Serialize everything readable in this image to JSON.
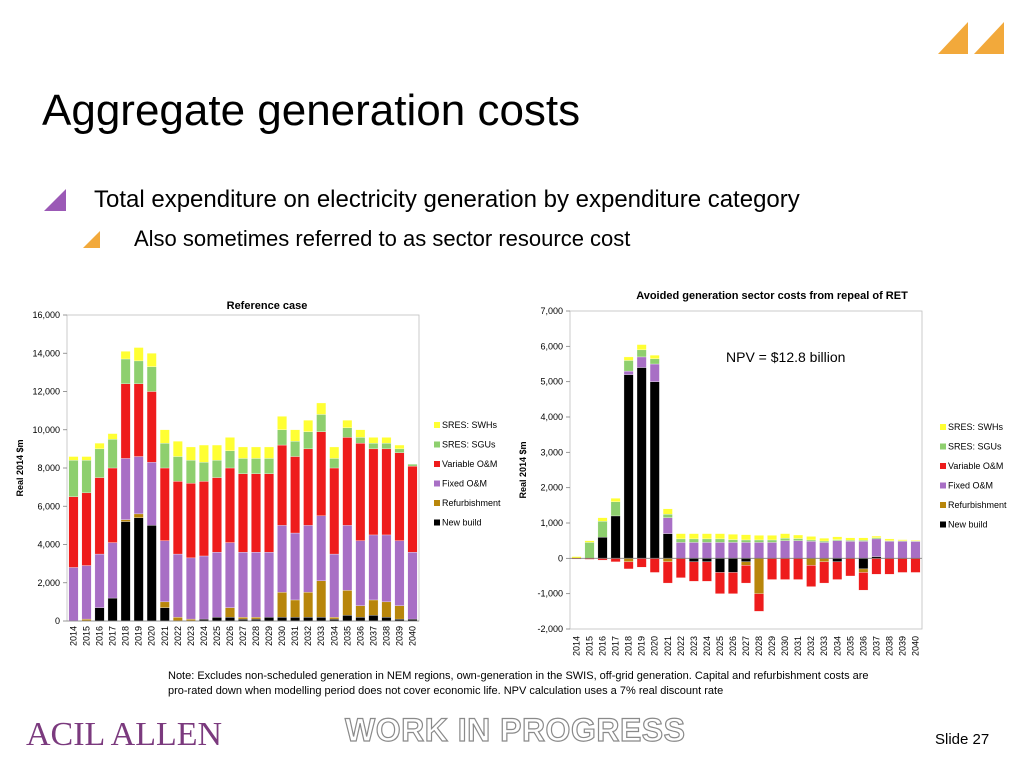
{
  "slide": {
    "title": "Aggregate generation costs",
    "bullet1": "Total expenditure on electricity generation by expenditure category",
    "bullet2": "Also sometimes referred to as sector resource cost",
    "note": "Note: Excludes non-scheduled generation in NEM regions, own-generation in the SWIS, off-grid generation. Capital and refurbishment costs are pro-rated down when modelling period does not cover economic life. NPV calculation uses a 7% real discount rate",
    "logo_text": "ACIL ALLEN",
    "watermark": "WORK IN PROGRESS",
    "slide_number": "Slide 27",
    "colors": {
      "purple": "#9b59b6",
      "orange": "#f2a93b",
      "logo": "#7b3a7e"
    }
  },
  "chart_data": [
    {
      "type": "bar",
      "stacked": true,
      "title": "Reference case",
      "ylabel": "Real 2014 $m",
      "ylim": [
        0,
        16000
      ],
      "yticks": [
        0,
        2000,
        4000,
        6000,
        8000,
        10000,
        12000,
        14000,
        16000
      ],
      "ytick_labels": [
        "0",
        "2,000",
        "4,000",
        "6,000",
        "8,000",
        "10,000",
        "12,000",
        "14,000",
        "16,000"
      ],
      "grid": false,
      "legend_position": "right",
      "categories": [
        "2014",
        "2015",
        "2016",
        "2017",
        "2018",
        "2019",
        "2020",
        "2021",
        "2022",
        "2023",
        "2024",
        "2025",
        "2026",
        "2027",
        "2028",
        "2029",
        "2030",
        "2031",
        "2032",
        "2033",
        "2034",
        "2035",
        "2036",
        "2037",
        "2038",
        "2039",
        "2040"
      ],
      "series": [
        {
          "name": "New build",
          "color": "#000000",
          "values": [
            0,
            0,
            700,
            1200,
            5200,
            5400,
            5000,
            700,
            0,
            0,
            100,
            200,
            200,
            100,
            100,
            200,
            200,
            200,
            200,
            200,
            100,
            300,
            200,
            300,
            200,
            100,
            100
          ]
        },
        {
          "name": "Refurbishment",
          "color": "#b8860b",
          "values": [
            0,
            100,
            0,
            0,
            100,
            200,
            0,
            300,
            200,
            100,
            0,
            0,
            500,
            100,
            100,
            0,
            1300,
            900,
            1300,
            1900,
            100,
            1300,
            600,
            800,
            800,
            700,
            0
          ]
        },
        {
          "name": "Fixed O&M",
          "color": "#a86fc5",
          "values": [
            2800,
            2800,
            2800,
            2900,
            3200,
            3000,
            3300,
            3200,
            3300,
            3200,
            3300,
            3400,
            3400,
            3400,
            3400,
            3400,
            3500,
            3500,
            3500,
            3400,
            3300,
            3400,
            3400,
            3400,
            3500,
            3400,
            3500
          ]
        },
        {
          "name": "Variable O&M",
          "color": "#ee1c1c",
          "values": [
            3700,
            3800,
            4000,
            3900,
            3900,
            3800,
            3700,
            3800,
            3800,
            3900,
            3900,
            3900,
            3900,
            4100,
            4100,
            4100,
            4200,
            4000,
            4000,
            4400,
            4500,
            4600,
            5100,
            4500,
            4500,
            4600,
            4500
          ]
        },
        {
          "name": "SRES: SGUs",
          "color": "#8ecf6e",
          "values": [
            1900,
            1700,
            1500,
            1500,
            1300,
            1200,
            1300,
            1300,
            1300,
            1200,
            1000,
            900,
            900,
            800,
            800,
            800,
            800,
            800,
            900,
            900,
            500,
            500,
            300,
            300,
            300,
            200,
            100
          ]
        },
        {
          "name": "SRES: SWHs",
          "color": "#ffff33",
          "values": [
            200,
            200,
            300,
            300,
            400,
            700,
            700,
            700,
            800,
            700,
            900,
            800,
            700,
            600,
            600,
            600,
            700,
            600,
            600,
            600,
            600,
            400,
            400,
            300,
            300,
            200,
            0
          ]
        }
      ]
    },
    {
      "type": "bar",
      "stacked": true,
      "title": "Avoided generation sector costs from repeal of RET",
      "ylabel": "Real 2014 $m",
      "ylim": [
        -2000,
        7000
      ],
      "yticks": [
        -2000,
        -1000,
        0,
        1000,
        2000,
        3000,
        4000,
        5000,
        6000,
        7000
      ],
      "ytick_labels": [
        "-2,000",
        "-1,000",
        "0",
        "1,000",
        "2,000",
        "3,000",
        "4,000",
        "5,000",
        "6,000",
        "7,000"
      ],
      "grid": false,
      "legend_position": "right",
      "annotation": "NPV = $12.8 billion",
      "categories": [
        "2014",
        "2015",
        "2016",
        "2017",
        "2018",
        "2019",
        "2020",
        "2021",
        "2022",
        "2023",
        "2024",
        "2025",
        "2026",
        "2027",
        "2028",
        "2029",
        "2030",
        "2031",
        "2032",
        "2033",
        "2034",
        "2035",
        "2036",
        "2037",
        "2038",
        "2039",
        "2040"
      ],
      "series": [
        {
          "name": "New build",
          "color": "#000000",
          "values": [
            0,
            0,
            600,
            1200,
            5200,
            5400,
            5000,
            700,
            0,
            -100,
            -100,
            -400,
            -400,
            -100,
            0,
            0,
            0,
            0,
            0,
            0,
            -100,
            0,
            -300,
            50,
            0,
            0,
            0
          ]
        },
        {
          "name": "Refurbishment",
          "color": "#b8860b",
          "values": [
            0,
            0,
            0,
            0,
            -100,
            0,
            0,
            -100,
            0,
            0,
            0,
            0,
            0,
            -100,
            -1000,
            0,
            0,
            0,
            -200,
            -100,
            0,
            0,
            -100,
            0,
            0,
            0,
            0
          ]
        },
        {
          "name": "Fixed O&M",
          "color": "#a86fc5",
          "values": [
            0,
            0,
            0,
            0,
            100,
            300,
            500,
            450,
            450,
            450,
            450,
            450,
            450,
            450,
            450,
            450,
            500,
            500,
            480,
            450,
            500,
            480,
            480,
            500,
            480,
            480,
            480
          ]
        },
        {
          "name": "Variable O&M",
          "color": "#ee1c1c",
          "values": [
            -20,
            -30,
            -50,
            -100,
            -200,
            -250,
            -400,
            -600,
            -550,
            -550,
            -550,
            -600,
            -600,
            -500,
            -500,
            -600,
            -600,
            -600,
            -600,
            -600,
            -500,
            -500,
            -500,
            -450,
            -450,
            -400,
            -400
          ]
        },
        {
          "name": "SRES: SGUs",
          "color": "#8ecf6e",
          "values": [
            0,
            450,
            450,
            400,
            300,
            200,
            150,
            100,
            100,
            100,
            100,
            100,
            80,
            70,
            70,
            70,
            70,
            60,
            40,
            40,
            30,
            30,
            30,
            30,
            20,
            20,
            10
          ]
        },
        {
          "name": "SRES: SWHs",
          "color": "#ffff33",
          "values": [
            50,
            50,
            100,
            100,
            100,
            150,
            100,
            150,
            150,
            150,
            150,
            150,
            150,
            150,
            130,
            130,
            130,
            100,
            100,
            80,
            80,
            70,
            70,
            50,
            50,
            30,
            20
          ]
        }
      ]
    }
  ]
}
